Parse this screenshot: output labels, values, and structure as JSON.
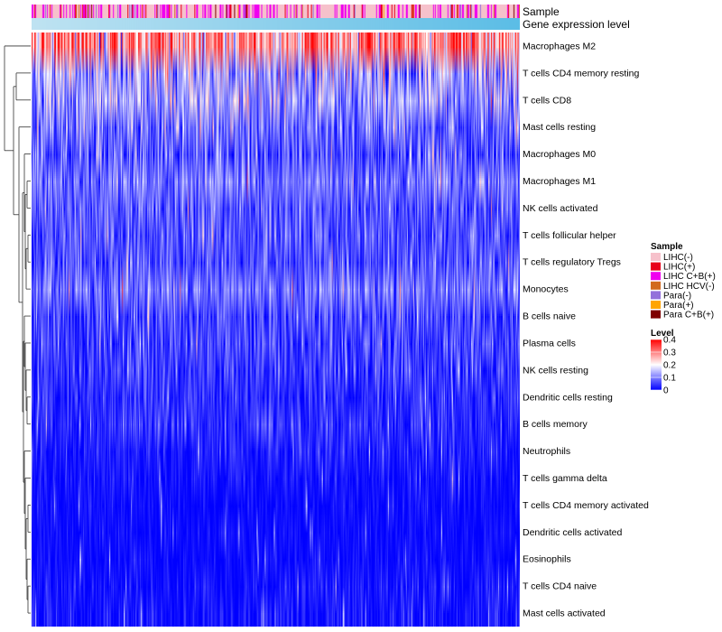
{
  "chart_data": {
    "type": "heatmap",
    "title": "",
    "annotation_tracks": [
      "Sample",
      "Gene expression level"
    ],
    "rows": [
      {
        "name": "Macrophages M2",
        "mean": 0.29,
        "spread": 0.09
      },
      {
        "name": "T cells CD4 memory resting",
        "mean": 0.13,
        "spread": 0.08
      },
      {
        "name": "T cells CD8",
        "mean": 0.12,
        "spread": 0.07
      },
      {
        "name": "Mast cells resting",
        "mean": 0.08,
        "spread": 0.07
      },
      {
        "name": "Macrophages M0",
        "mean": 0.06,
        "spread": 0.07
      },
      {
        "name": "Macrophages M1",
        "mean": 0.09,
        "spread": 0.05
      },
      {
        "name": "NK cells activated",
        "mean": 0.07,
        "spread": 0.05
      },
      {
        "name": "T cells follicular helper",
        "mean": 0.06,
        "spread": 0.05
      },
      {
        "name": "T cells regulatory  Tregs",
        "mean": 0.06,
        "spread": 0.05
      },
      {
        "name": "Monocytes",
        "mean": 0.09,
        "spread": 0.05
      },
      {
        "name": "B cells naive",
        "mean": 0.05,
        "spread": 0.05
      },
      {
        "name": "Plasma cells",
        "mean": 0.05,
        "spread": 0.05
      },
      {
        "name": "NK cells resting",
        "mean": 0.04,
        "spread": 0.05
      },
      {
        "name": "Dendritic cells resting",
        "mean": 0.03,
        "spread": 0.04
      },
      {
        "name": "B cells memory",
        "mean": 0.03,
        "spread": 0.04
      },
      {
        "name": "Neutrophils",
        "mean": 0.02,
        "spread": 0.03
      },
      {
        "name": "T cells gamma delta",
        "mean": 0.01,
        "spread": 0.03
      },
      {
        "name": "T cells CD4 memory activated",
        "mean": 0.005,
        "spread": 0.02
      },
      {
        "name": "Dendritic cells activated",
        "mean": 0.005,
        "spread": 0.02
      },
      {
        "name": "Eosinophils",
        "mean": 0.005,
        "spread": 0.02
      },
      {
        "name": "T cells CD4 naive",
        "mean": 0.01,
        "spread": 0.03
      },
      {
        "name": "Mast cells activated",
        "mean": 0.01,
        "spread": 0.03
      }
    ],
    "sample_legend": {
      "title": "Sample",
      "entries": [
        {
          "label": "LIHC(-)",
          "color": "#f6c1cb"
        },
        {
          "label": "LIHC(+)",
          "color": "#e8001a"
        },
        {
          "label": "LIHC C+B(+)",
          "color": "#f000f0"
        },
        {
          "label": "LIHC HCV(-)",
          "color": "#d2691e"
        },
        {
          "label": "Para(-)",
          "color": "#9370db"
        },
        {
          "label": "Para(+)",
          "color": "#ffa500"
        },
        {
          "label": "Para C+B(+)",
          "color": "#7f0000"
        }
      ]
    },
    "level_legend": {
      "title": "Level",
      "ticks": [
        "0.4",
        "0.3",
        "0.2",
        "0.1",
        "0"
      ],
      "tick_values": [
        0.4,
        0.3,
        0.2,
        0.1,
        0
      ],
      "range": [
        0,
        0.4
      ],
      "colors": [
        "#0000ff",
        "#ffffff",
        "#ff0000"
      ]
    },
    "expression_bar_colors": [
      "#bfe3f2",
      "#5bbde6"
    ],
    "legend_position": "right",
    "dendrogram": "rows, left"
  }
}
